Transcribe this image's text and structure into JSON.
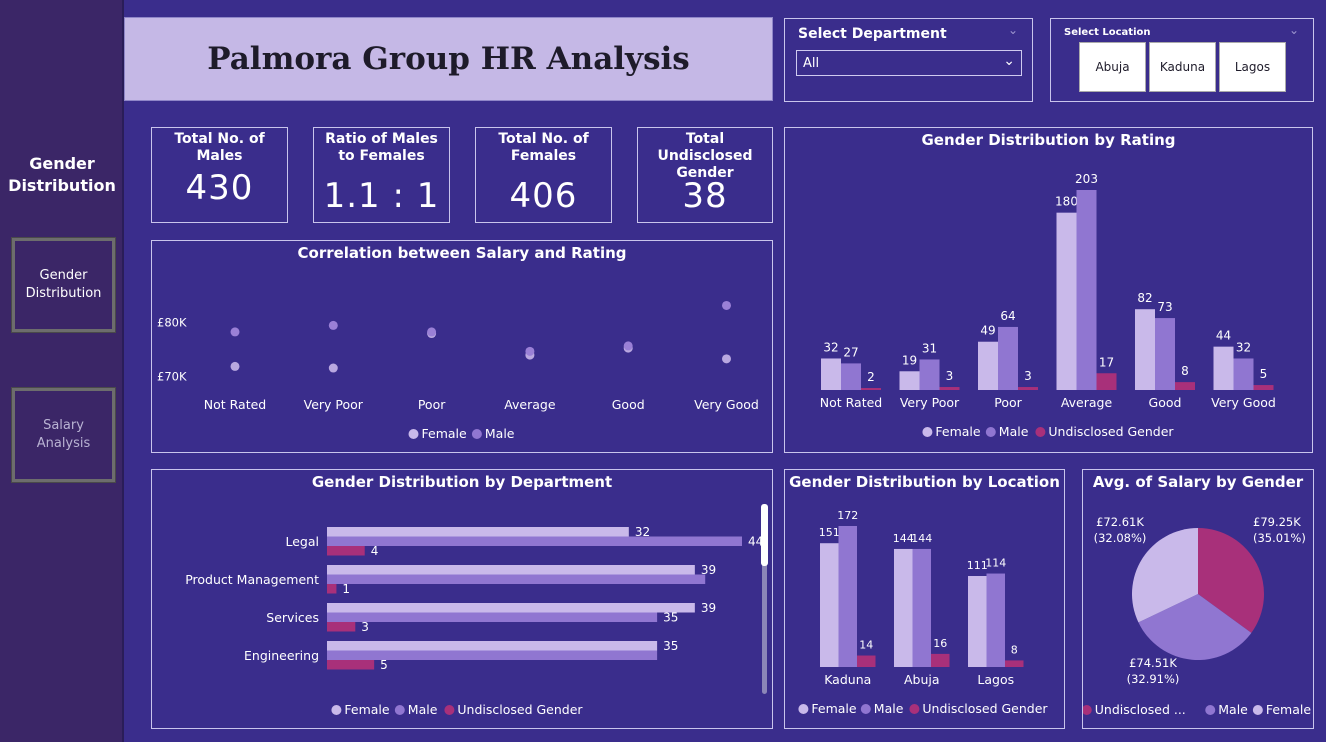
{
  "sidebar": {
    "title": "Gender Distribution",
    "buttons": [
      "Gender Distribution",
      "Salary Analysis"
    ]
  },
  "header": {
    "title": "Palmora Group HR Analysis"
  },
  "filters": {
    "department": {
      "label": "Select Department",
      "value": "All"
    },
    "location": {
      "label": "Select Location",
      "options": [
        "Abuja",
        "Kaduna",
        "Lagos"
      ]
    }
  },
  "kpis": [
    {
      "label": "Total No. of Males",
      "value": "430"
    },
    {
      "label": "Ratio of Males to Females",
      "value": "1.1 : 1"
    },
    {
      "label": "Total No. of Females",
      "value": "406"
    },
    {
      "label": "Total Undisclosed Gender",
      "value": "38"
    }
  ],
  "colors": {
    "female": "#c9b9ea",
    "male": "#9076d1",
    "undisclosed": "#a8307a"
  },
  "chart_data": [
    {
      "type": "scatter",
      "title": "Correlation between Salary and Rating",
      "categories": [
        "Not Rated",
        "Very Poor",
        "Poor",
        "Average",
        "Good",
        "Very Good"
      ],
      "y_ticks": [
        "£70K",
        "£80K"
      ],
      "ylim": [
        64,
        87
      ],
      "series": [
        {
          "name": "Female",
          "values": [
            71.9,
            71.6,
            78.0,
            74.0,
            75.3,
            73.3
          ]
        },
        {
          "name": "Male",
          "values": [
            78.3,
            79.5,
            78.3,
            74.7,
            75.7,
            83.2
          ]
        }
      ],
      "legend": [
        "Female",
        "Male"
      ]
    },
    {
      "type": "bar",
      "title": "Gender Distribution by Rating",
      "categories": [
        "Not Rated",
        "Very Poor",
        "Poor",
        "Average",
        "Good",
        "Very Good"
      ],
      "ylim": [
        0,
        203
      ],
      "series": [
        {
          "name": "Female",
          "values": [
            32,
            19,
            49,
            180,
            82,
            44
          ]
        },
        {
          "name": "Male",
          "values": [
            27,
            31,
            64,
            203,
            73,
            32
          ]
        },
        {
          "name": "Undisclosed Gender",
          "values": [
            2,
            3,
            3,
            17,
            8,
            5
          ]
        }
      ],
      "legend": [
        "Female",
        "Male",
        "Undisclosed Gender"
      ]
    },
    {
      "type": "bar",
      "orientation": "horizontal",
      "title": "Gender Distribution by Department",
      "categories": [
        "Legal",
        "Product Management",
        "Services",
        "Engineering"
      ],
      "xlim": [
        0,
        44
      ],
      "series": [
        {
          "name": "Female",
          "values": [
            32,
            39,
            39,
            35
          ]
        },
        {
          "name": "Male",
          "values": [
            44,
            null,
            35,
            null
          ]
        },
        {
          "name": "Undisclosed Gender",
          "values": [
            4,
            1,
            3,
            5
          ]
        }
      ],
      "male_bar_values": [
        44,
        40.1,
        35,
        35
      ],
      "legend": [
        "Female",
        "Male",
        "Undisclosed Gender"
      ]
    },
    {
      "type": "bar",
      "title": "Gender Distribution by Location",
      "categories": [
        "Kaduna",
        "Abuja",
        "Lagos"
      ],
      "ylim": [
        0,
        172
      ],
      "series": [
        {
          "name": "Female",
          "values": [
            151,
            144,
            111
          ]
        },
        {
          "name": "Male",
          "values": [
            172,
            144,
            114
          ]
        },
        {
          "name": "Undisclosed Gender",
          "values": [
            14,
            16,
            8
          ]
        }
      ],
      "legend": [
        "Female",
        "Male",
        "Undisclosed Gender"
      ]
    },
    {
      "type": "pie",
      "title": "Avg. of Salary by Gender",
      "slices": [
        {
          "name": "Undisclosed Gender",
          "value": 79.25,
          "label": "£79.25K",
          "pct": "(35.01%)"
        },
        {
          "name": "Male",
          "value": 74.51,
          "label": "£74.51K",
          "pct": "(32.91%)"
        },
        {
          "name": "Female",
          "value": 72.61,
          "label": "£72.61K",
          "pct": "(32.08%)"
        }
      ],
      "legend": [
        "Undisclosed ...",
        "Male",
        "Female"
      ]
    }
  ]
}
